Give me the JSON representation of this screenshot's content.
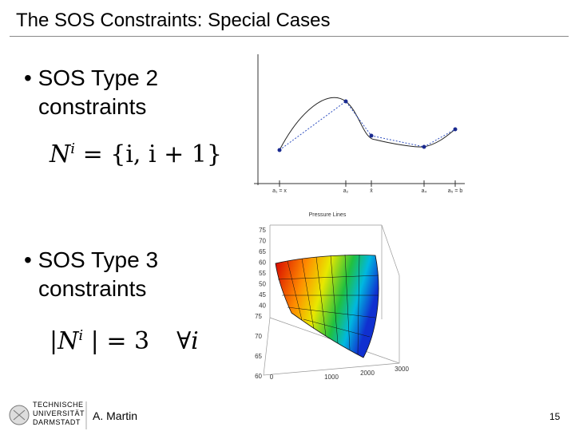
{
  "header": {
    "title": "The SOS Constraints: Special Cases"
  },
  "bullets": [
    {
      "marker": "•",
      "text": "SOS Type 2",
      "continuation": "constraints",
      "formula": {
        "base": "N",
        "sup": "i",
        "rest": "= {i, i + 1}"
      }
    },
    {
      "marker": "•",
      "text": "SOS Type 3",
      "continuation": "constraints",
      "formula": {
        "pre": "|",
        "base": "N",
        "sup": "i",
        "rest": "| = 3",
        "quantifier": "∀i"
      }
    }
  ],
  "figure_top": {
    "x_labels": [
      "a₁ = x",
      "a₂",
      "x̄",
      "a₄",
      "a₅ = b"
    ]
  },
  "figure_bottom": {
    "title": "Pressure Lines",
    "z_ticks": [
      "75",
      "70",
      "65",
      "60",
      "55",
      "50",
      "45",
      "40"
    ],
    "y_ticks": [
      "75",
      "70",
      "65",
      "60"
    ],
    "x_ticks": [
      "0",
      "1000",
      "2000",
      "3000"
    ]
  },
  "footer": {
    "university": [
      "TECHNISCHE",
      "UNIVERSITÄT",
      "DARMSTADT"
    ],
    "author": "A. Martin",
    "page": "15"
  }
}
